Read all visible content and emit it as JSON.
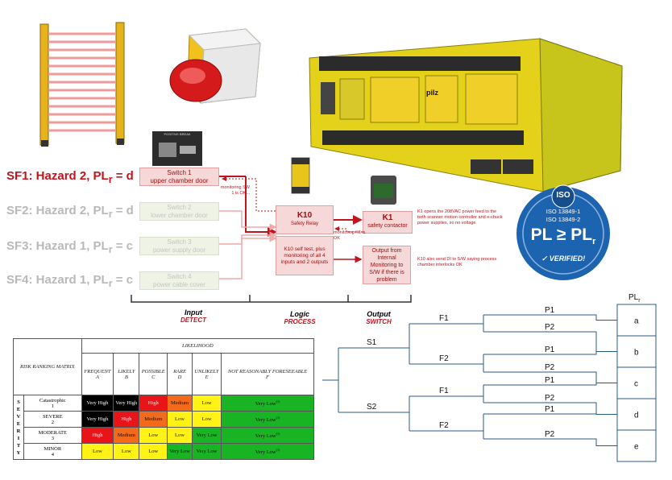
{
  "safety_functions": [
    {
      "id": "SF1",
      "text": "SF1:  Hazard 2, PL",
      "sub": "r",
      "suffix": " = d",
      "state": "active"
    },
    {
      "id": "SF2",
      "text": "SF2:  Hazard 2, PL",
      "sub": "r",
      "suffix": " = d",
      "state": "dim"
    },
    {
      "id": "SF3",
      "text": "SF3:  Hazard 1, PL",
      "sub": "r",
      "suffix": " = c",
      "state": "dim"
    },
    {
      "id": "SF4",
      "text": "SF4:  Hazard 1, PL",
      "sub": "r",
      "suffix": " = c",
      "state": "dim"
    }
  ],
  "switches": [
    {
      "title": "Switch 1",
      "desc": "upper chamber door"
    },
    {
      "title": "Switch 2",
      "desc": "lower chamber door"
    },
    {
      "title": "Switch 3",
      "desc": "power supply door"
    },
    {
      "title": "Switch 4",
      "desc": "power cable cover"
    }
  ],
  "monitoring_sw1": "monitoring SW 1 is OK...",
  "k10": {
    "title": "K10",
    "desc": "Safety Relay"
  },
  "k10_test": "K10 self test,  plus monitoring of all 4 inputs and 2 outputs",
  "k1": {
    "title": "K1",
    "desc": "safety contactor"
  },
  "monitoring_k1": "monitoring K1 is OK",
  "output_box": "Output from Internal Monitoring to S/W if there is problem",
  "k1_note": "K1 opens the 208VAC power feed to the both scanner motion controller and e-chuck power supplies, so no voltage",
  "k10_note": "K10 also send DI to S/W saying process chamber interlocks OK",
  "photo_label": "POSITIVE BREAK",
  "pilz_brand": "pilz",
  "stages": [
    {
      "name": "Input",
      "action": "DETECT"
    },
    {
      "name": "Logic",
      "action": "PROCESS"
    },
    {
      "name": "Output",
      "action": "SWITCH"
    }
  ],
  "iso_badge": {
    "iso": "ISO",
    "std1": "ISO 13849-1",
    "std2": "ISO 13849-2",
    "main": "PL ≥ PL",
    "main_sub": "r",
    "verified": "VERIFIED!"
  },
  "risk_matrix": {
    "corner": "RISK RANKING MATRIX",
    "likelihood": "LIKELIHOOD",
    "severity": [
      "S",
      "E",
      "V",
      "E",
      "R",
      "I",
      "T",
      "Y"
    ],
    "columns": [
      {
        "name": "FREQUENT",
        "code": "A"
      },
      {
        "name": "LIKELY",
        "code": "B"
      },
      {
        "name": "POSSIBLE",
        "code": "C"
      },
      {
        "name": "RARE",
        "code": "D"
      },
      {
        "name": "UNLIKELY",
        "code": "E"
      },
      {
        "name": "NOT REASONABLY FORESEEABLE",
        "code": "F"
      }
    ],
    "rows": [
      {
        "name": "Catastrophic",
        "code": "1",
        "cells": [
          [
            "Very High",
            "vh"
          ],
          [
            "Very High",
            "vh"
          ],
          [
            "High",
            "h"
          ],
          [
            "Medium",
            "m"
          ],
          [
            "Low",
            "l"
          ],
          [
            "Very Low",
            "vl"
          ]
        ]
      },
      {
        "name": "SEVERE",
        "code": "2",
        "cells": [
          [
            "Very High",
            "vh"
          ],
          [
            "High",
            "h"
          ],
          [
            "Medium",
            "m"
          ],
          [
            "Low",
            "l"
          ],
          [
            "Low",
            "l"
          ],
          [
            "Very Low",
            "vl"
          ]
        ]
      },
      {
        "name": "MODERATE",
        "code": "3",
        "cells": [
          [
            "High",
            "h"
          ],
          [
            "Medium",
            "m"
          ],
          [
            "Low",
            "l"
          ],
          [
            "Low",
            "l"
          ],
          [
            "Very Low",
            "vl"
          ],
          [
            "Very Low",
            "vl"
          ]
        ]
      },
      {
        "name": "MINOR",
        "code": "4",
        "cells": [
          [
            "Low",
            "l"
          ],
          [
            "Low",
            "l"
          ],
          [
            "Low",
            "l"
          ],
          [
            "Very Low",
            "vl"
          ],
          [
            "Very Low",
            "vl"
          ],
          [
            "Very Low",
            "vl"
          ]
        ]
      }
    ],
    "footnote_mark": "(1)"
  },
  "risk_graph": {
    "header": "PL",
    "header_sub": "r",
    "levels": [
      "a",
      "b",
      "c",
      "d",
      "e"
    ],
    "s": [
      "S1",
      "S2"
    ],
    "f": [
      "F1",
      "F2",
      "F1",
      "F2"
    ],
    "p": [
      "P1",
      "P2",
      "P1",
      "P2",
      "P1",
      "P2",
      "P1",
      "P2"
    ]
  }
}
